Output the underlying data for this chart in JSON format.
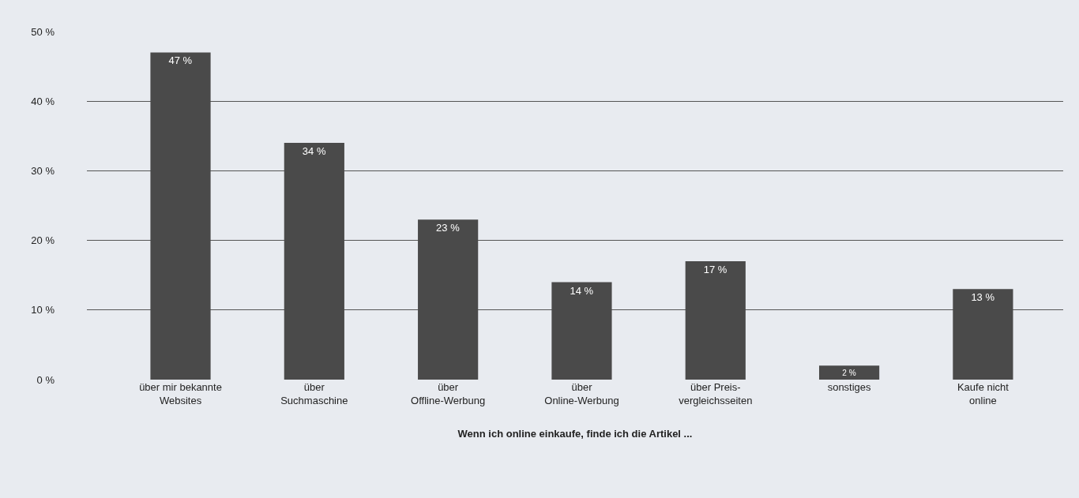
{
  "chart_data": {
    "type": "bar",
    "xlabel": "Wenn ich online einkaufe, finde ich die Artikel ...",
    "categories": [
      "über mir bekannte\nWebsites",
      "über\nSuchmaschine",
      "über\nOffline-Werbung",
      "über\nOnline-Werbung",
      "über Preis-\nvergleichsseiten",
      "sonstiges",
      "Kaufe nicht\nonline"
    ],
    "values": [
      47,
      34,
      23,
      14,
      17,
      2,
      13
    ],
    "value_labels": [
      "47 %",
      "34 %",
      "23 %",
      "14 %",
      "17 %",
      "2 %",
      "13 %"
    ],
    "color": "#4a4a4a",
    "ylim": [
      0,
      50
    ],
    "yticks": [
      {
        "value": 0,
        "label": "0 %"
      },
      {
        "value": 10,
        "label": "10 %"
      },
      {
        "value": 20,
        "label": "20 %"
      },
      {
        "value": 30,
        "label": "30 %"
      },
      {
        "value": 40,
        "label": "40 %"
      },
      {
        "value": 50,
        "label": "50 %"
      }
    ],
    "grid": "y"
  }
}
